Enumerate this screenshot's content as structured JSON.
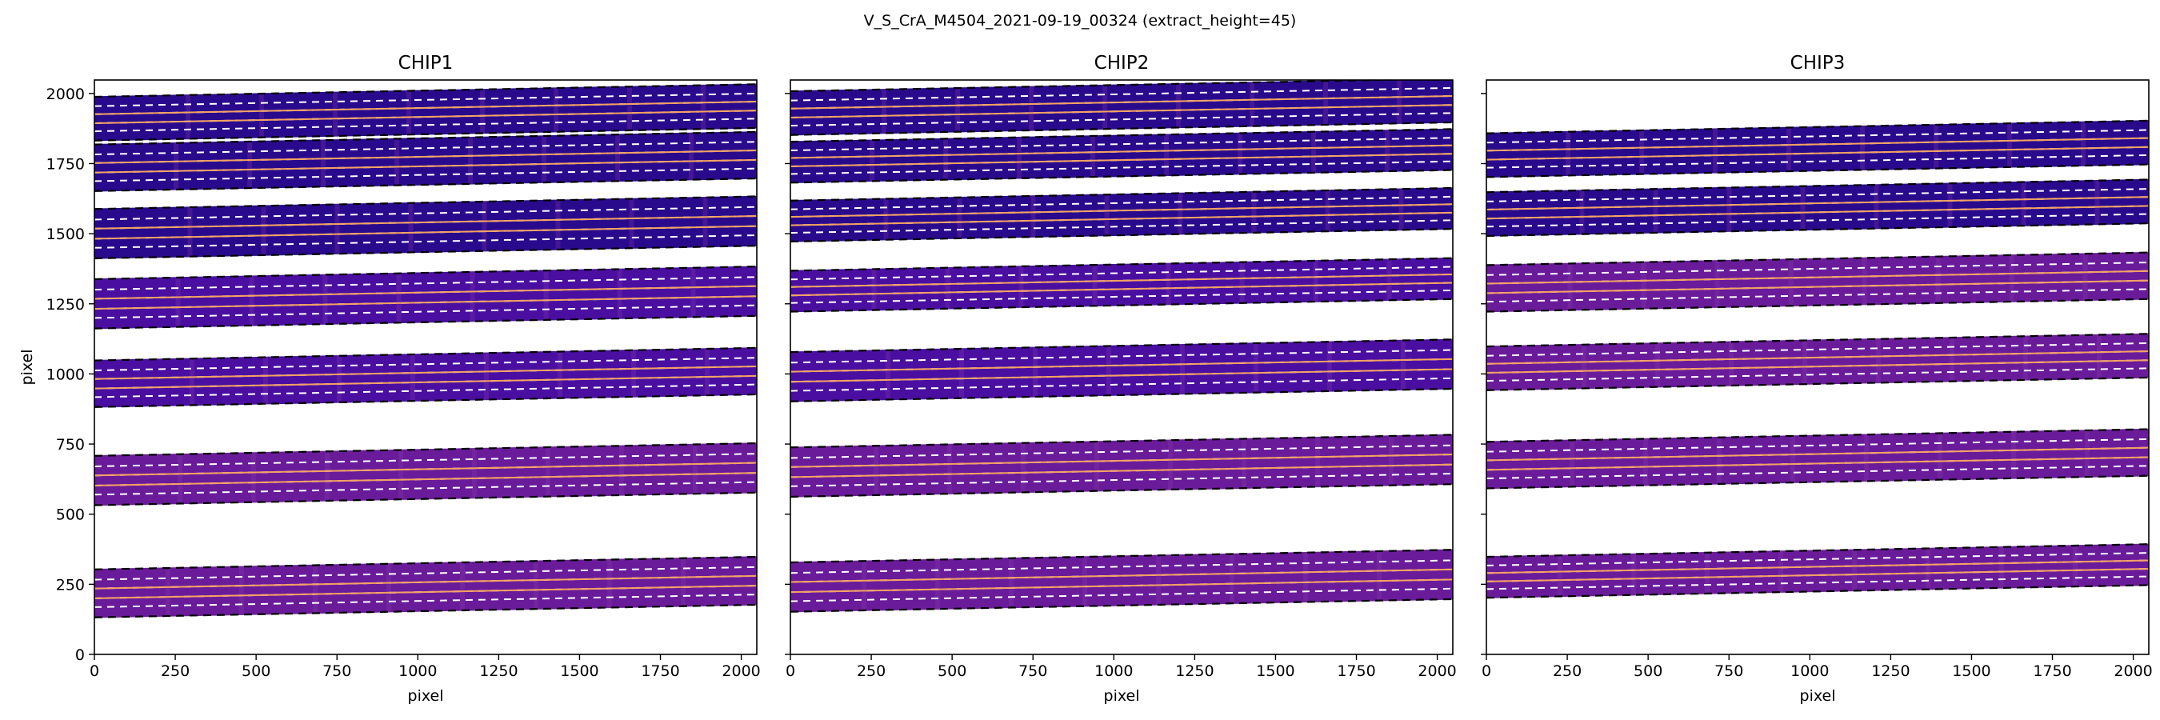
{
  "figure": {
    "suptitle": "V_S_CrA_M4504_2021-09-19_00324  (extract_height=45)"
  },
  "colors": {
    "band_dark": "#2a0a8c",
    "band_mid": "#4a0fa0",
    "band_purple": "#6a1b9a",
    "trace_line": "#f4a261",
    "extract_dash": "#ffffff",
    "edge_dash": "#000000"
  },
  "chart_data": [
    {
      "type": "heatmap",
      "title": "CHIP1",
      "xlabel": "pixel",
      "ylabel": "pixel",
      "xlim": [
        0,
        2048
      ],
      "ylim": [
        0,
        2048
      ],
      "xticks": [
        0,
        250,
        500,
        750,
        1000,
        1250,
        1500,
        1750,
        2000
      ],
      "yticks": [
        0,
        250,
        500,
        750,
        1000,
        1250,
        1500,
        1750,
        2000
      ],
      "orders": [
        {
          "y0": 130,
          "y1": 305,
          "fill": "band_purple"
        },
        {
          "y0": 530,
          "y1": 710,
          "fill": "band_purple"
        },
        {
          "y0": 880,
          "y1": 1050,
          "fill": "band_mid"
        },
        {
          "y0": 1160,
          "y1": 1340,
          "fill": "band_mid"
        },
        {
          "y0": 1410,
          "y1": 1590,
          "fill": "band_dark"
        },
        {
          "y0": 1650,
          "y1": 1820,
          "fill": "band_dark"
        },
        {
          "y0": 1830,
          "y1": 1990,
          "fill": "band_dark"
        }
      ]
    },
    {
      "type": "heatmap",
      "title": "CHIP2",
      "xlabel": "pixel",
      "ylabel": "",
      "xlim": [
        0,
        2048
      ],
      "ylim": [
        0,
        2048
      ],
      "xticks": [
        0,
        250,
        500,
        750,
        1000,
        1250,
        1500,
        1750,
        2000
      ],
      "yticks": [
        0,
        250,
        500,
        750,
        1000,
        1250,
        1500,
        1750,
        2000
      ],
      "orders": [
        {
          "y0": 150,
          "y1": 330,
          "fill": "band_purple"
        },
        {
          "y0": 560,
          "y1": 740,
          "fill": "band_purple"
        },
        {
          "y0": 900,
          "y1": 1080,
          "fill": "band_mid"
        },
        {
          "y0": 1220,
          "y1": 1370,
          "fill": "band_mid"
        },
        {
          "y0": 1470,
          "y1": 1620,
          "fill": "band_dark"
        },
        {
          "y0": 1680,
          "y1": 1830,
          "fill": "band_dark"
        },
        {
          "y0": 1850,
          "y1": 2010,
          "fill": "band_dark"
        }
      ]
    },
    {
      "type": "heatmap",
      "title": "CHIP3",
      "xlabel": "pixel",
      "ylabel": "",
      "xlim": [
        0,
        2048
      ],
      "ylim": [
        0,
        2048
      ],
      "xticks": [
        0,
        250,
        500,
        750,
        1000,
        1250,
        1500,
        1750,
        2000
      ],
      "yticks": [
        0,
        250,
        500,
        750,
        1000,
        1250,
        1500,
        1750,
        2000
      ],
      "orders": [
        {
          "y0": 200,
          "y1": 350,
          "fill": "band_purple"
        },
        {
          "y0": 590,
          "y1": 760,
          "fill": "band_purple"
        },
        {
          "y0": 940,
          "y1": 1100,
          "fill": "band_purple"
        },
        {
          "y0": 1220,
          "y1": 1390,
          "fill": "band_purple"
        },
        {
          "y0": 1490,
          "y1": 1650,
          "fill": "band_dark"
        },
        {
          "y0": 1700,
          "y1": 1860,
          "fill": "band_dark"
        }
      ]
    }
  ]
}
